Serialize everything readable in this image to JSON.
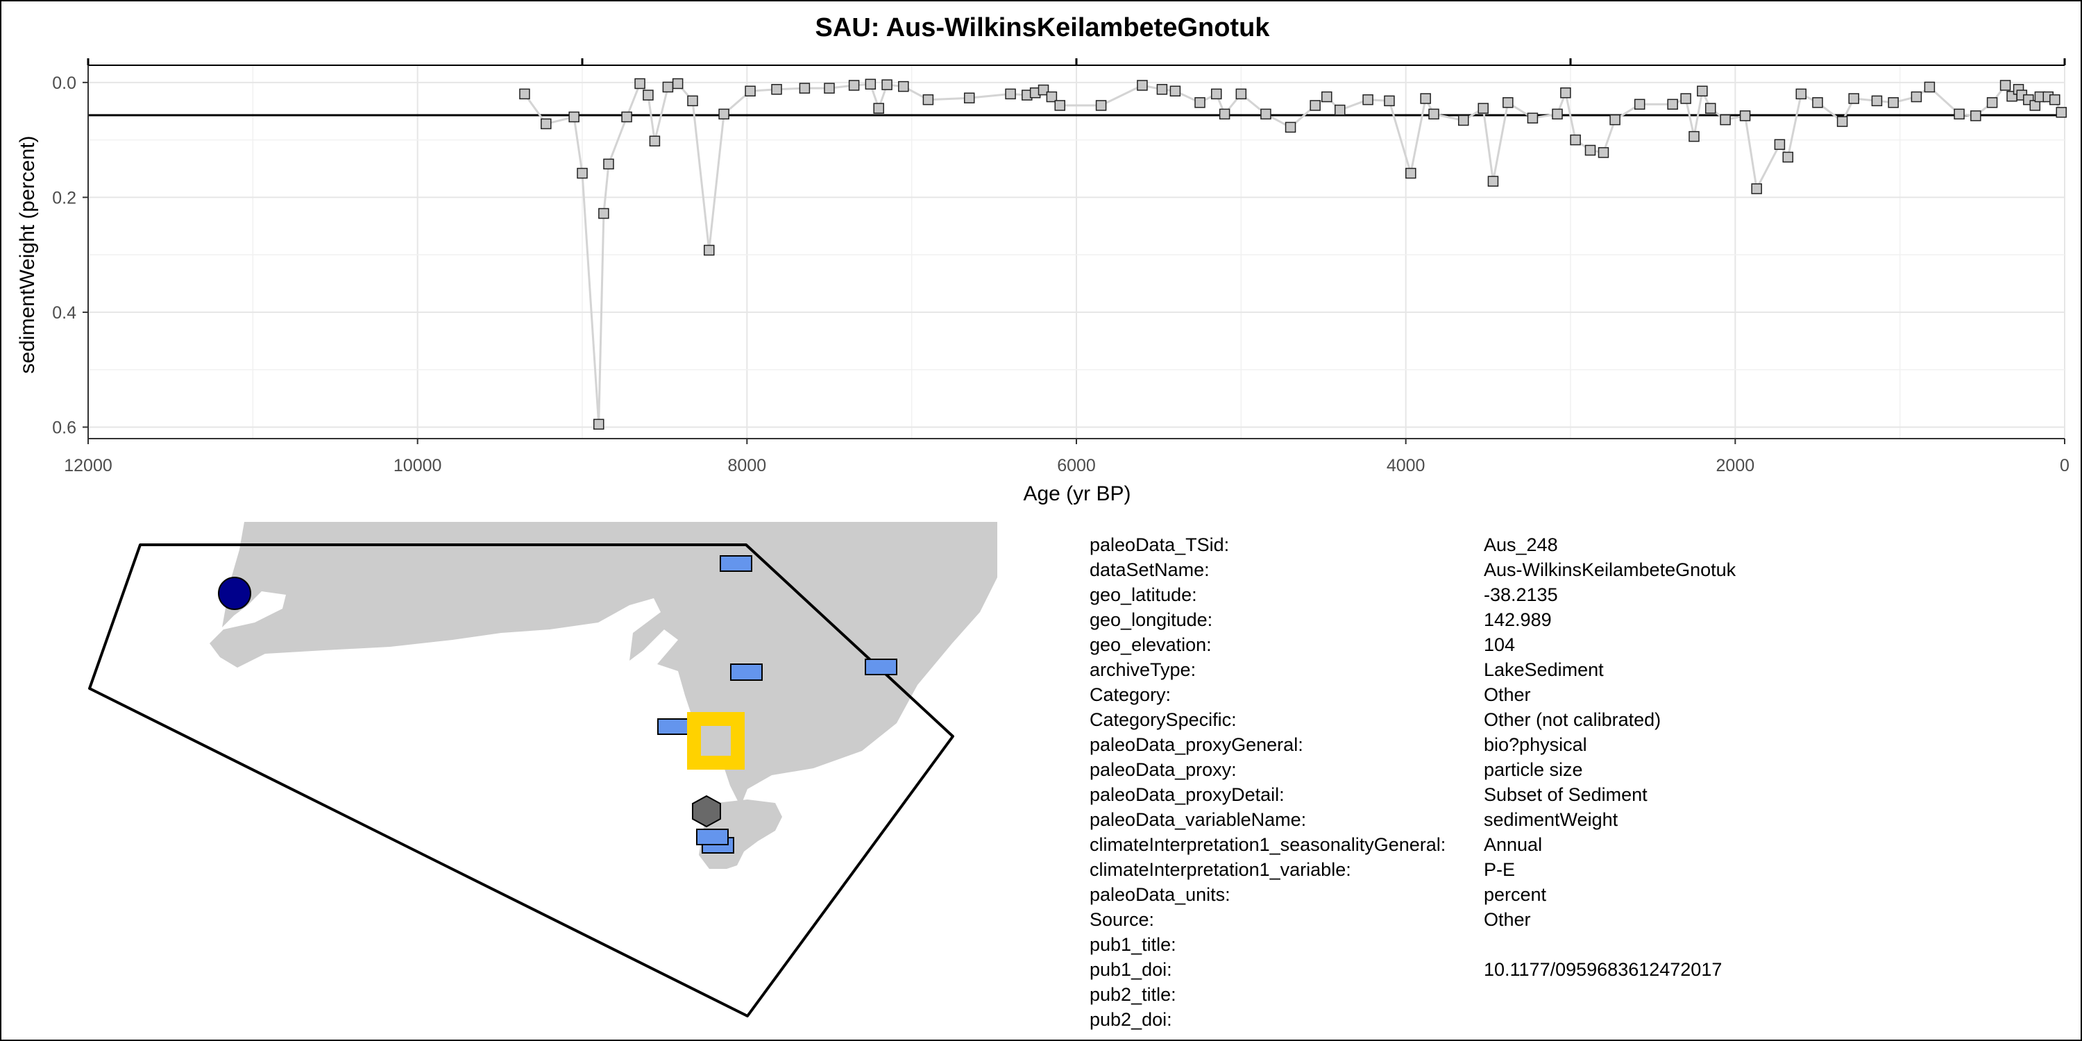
{
  "chart_data": {
    "type": "scatter",
    "title": "SAU: Aus-WilkinsKeilambeteGnotuk",
    "xlabel": "Age (yr BP)",
    "ylabel": "sedimentWeight (percent)",
    "xlim": [
      12000,
      0
    ],
    "ylim": [
      0.62,
      -0.03
    ],
    "x_reversed": true,
    "y_reversed": true,
    "x_ticks": [
      12000,
      10000,
      8000,
      6000,
      4000,
      2000,
      0
    ],
    "x_tick_labels": [
      "12000",
      "10000",
      "8000",
      "6000",
      "4000",
      "2000",
      "0"
    ],
    "y_ticks": [
      0.0,
      0.2,
      0.4,
      0.6
    ],
    "y_tick_labels": [
      "0.0",
      "0.2",
      "0.4",
      "0.6"
    ],
    "top_axis_ticks": [
      12000,
      9000,
      6000,
      3000,
      0
    ],
    "mean_line": 0.057,
    "grid": true,
    "legend": "none",
    "marker_color": "#c8c8c8",
    "line_color": "#d4d4d4",
    "points": [
      [
        9350,
        0.02
      ],
      [
        9220,
        0.072
      ],
      [
        9050,
        0.06
      ],
      [
        9000,
        0.158
      ],
      [
        8900,
        0.595
      ],
      [
        8870,
        0.228
      ],
      [
        8840,
        0.142
      ],
      [
        8730,
        0.06
      ],
      [
        8650,
        0.002
      ],
      [
        8600,
        0.022
      ],
      [
        8560,
        0.102
      ],
      [
        8480,
        0.008
      ],
      [
        8420,
        0.002
      ],
      [
        8330,
        0.032
      ],
      [
        8230,
        0.292
      ],
      [
        8140,
        0.055
      ],
      [
        7980,
        0.015
      ],
      [
        7820,
        0.012
      ],
      [
        7650,
        0.01
      ],
      [
        7500,
        0.01
      ],
      [
        7350,
        0.005
      ],
      [
        7250,
        0.003
      ],
      [
        7200,
        0.045
      ],
      [
        7150,
        0.004
      ],
      [
        7050,
        0.007
      ],
      [
        6900,
        0.03
      ],
      [
        6650,
        0.027
      ],
      [
        6400,
        0.02
      ],
      [
        6300,
        0.022
      ],
      [
        6250,
        0.018
      ],
      [
        6200,
        0.013
      ],
      [
        6150,
        0.025
      ],
      [
        6100,
        0.04
      ],
      [
        5850,
        0.04
      ],
      [
        5600,
        0.005
      ],
      [
        5480,
        0.012
      ],
      [
        5400,
        0.015
      ],
      [
        5250,
        0.035
      ],
      [
        5150,
        0.02
      ],
      [
        5100,
        0.055
      ],
      [
        5000,
        0.02
      ],
      [
        4850,
        0.055
      ],
      [
        4700,
        0.078
      ],
      [
        4550,
        0.04
      ],
      [
        4480,
        0.025
      ],
      [
        4400,
        0.048
      ],
      [
        4230,
        0.03
      ],
      [
        4100,
        0.032
      ],
      [
        3970,
        0.158
      ],
      [
        3880,
        0.028
      ],
      [
        3830,
        0.055
      ],
      [
        3650,
        0.066
      ],
      [
        3530,
        0.045
      ],
      [
        3470,
        0.172
      ],
      [
        3380,
        0.035
      ],
      [
        3230,
        0.062
      ],
      [
        3080,
        0.055
      ],
      [
        3030,
        0.018
      ],
      [
        2970,
        0.1
      ],
      [
        2880,
        0.118
      ],
      [
        2800,
        0.122
      ],
      [
        2730,
        0.065
      ],
      [
        2580,
        0.038
      ],
      [
        2380,
        0.038
      ],
      [
        2300,
        0.028
      ],
      [
        2250,
        0.094
      ],
      [
        2200,
        0.015
      ],
      [
        2150,
        0.045
      ],
      [
        2060,
        0.065
      ],
      [
        1940,
        0.058
      ],
      [
        1870,
        0.185
      ],
      [
        1730,
        0.108
      ],
      [
        1680,
        0.13
      ],
      [
        1600,
        0.02
      ],
      [
        1500,
        0.035
      ],
      [
        1350,
        0.068
      ],
      [
        1280,
        0.028
      ],
      [
        1140,
        0.032
      ],
      [
        1040,
        0.035
      ],
      [
        900,
        0.025
      ],
      [
        820,
        0.008
      ],
      [
        640,
        0.055
      ],
      [
        540,
        0.058
      ],
      [
        440,
        0.035
      ],
      [
        360,
        0.005
      ],
      [
        320,
        0.024
      ],
      [
        280,
        0.012
      ],
      [
        260,
        0.022
      ],
      [
        220,
        0.03
      ],
      [
        180,
        0.04
      ],
      [
        150,
        0.025
      ],
      [
        100,
        0.025
      ],
      [
        60,
        0.03
      ],
      [
        20,
        0.052
      ]
    ]
  },
  "map": {
    "land_color": "#cccccc",
    "boundary_color": "#000000",
    "target_color": "#ffd200",
    "blue_color": "#6495ed",
    "circle_color": "#00008b",
    "hexagon_color": "#696969"
  },
  "metadata": [
    {
      "key": "paleoData_TSid:",
      "value": "Aus_248"
    },
    {
      "key": "dataSetName:",
      "value": "Aus-WilkinsKeilambeteGnotuk"
    },
    {
      "key": "geo_latitude:",
      "value": "-38.2135"
    },
    {
      "key": "geo_longitude:",
      "value": "142.989"
    },
    {
      "key": "geo_elevation:",
      "value": "104"
    },
    {
      "key": "archiveType:",
      "value": "LakeSediment"
    },
    {
      "key": "Category:",
      "value": "Other"
    },
    {
      "key": "CategorySpecific:",
      "value": "Other (not calibrated)"
    },
    {
      "key": "paleoData_proxyGeneral:",
      "value": "bio?physical"
    },
    {
      "key": "paleoData_proxy:",
      "value": "particle size"
    },
    {
      "key": "paleoData_proxyDetail:",
      "value": "Subset of Sediment"
    },
    {
      "key": "paleoData_variableName:",
      "value": "sedimentWeight"
    },
    {
      "key": "climateInterpretation1_seasonalityGeneral:",
      "value": "Annual"
    },
    {
      "key": "climateInterpretation1_variable:",
      "value": "P-E"
    },
    {
      "key": "paleoData_units:",
      "value": "percent"
    },
    {
      "key": "Source:",
      "value": "Other"
    },
    {
      "key": "pub1_title:",
      "value": ""
    },
    {
      "key": "pub1_doi:",
      "value": "10.1177/0959683612472017"
    },
    {
      "key": "pub2_title:",
      "value": ""
    },
    {
      "key": "pub2_doi:",
      "value": ""
    }
  ]
}
